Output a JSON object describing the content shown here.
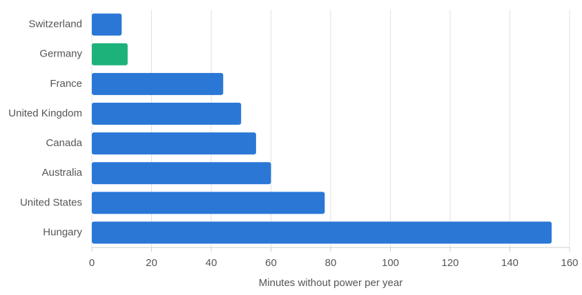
{
  "chart_data": {
    "type": "bar",
    "orientation": "horizontal",
    "categories": [
      "Switzerland",
      "Germany",
      "France",
      "United Kingdom",
      "Canada",
      "Australia",
      "United States",
      "Hungary"
    ],
    "values": [
      10,
      12,
      44,
      50,
      55,
      60,
      78,
      154
    ],
    "colors": [
      "#2a77d6",
      "#1db27a",
      "#2a77d6",
      "#2a77d6",
      "#2a77d6",
      "#2a77d6",
      "#2a77d6",
      "#2a77d6"
    ],
    "x_label": "Minutes without power per year",
    "xlim": [
      0,
      160
    ],
    "xticks": [
      0,
      20,
      40,
      60,
      80,
      100,
      120,
      140,
      160
    ],
    "grid": true
  }
}
